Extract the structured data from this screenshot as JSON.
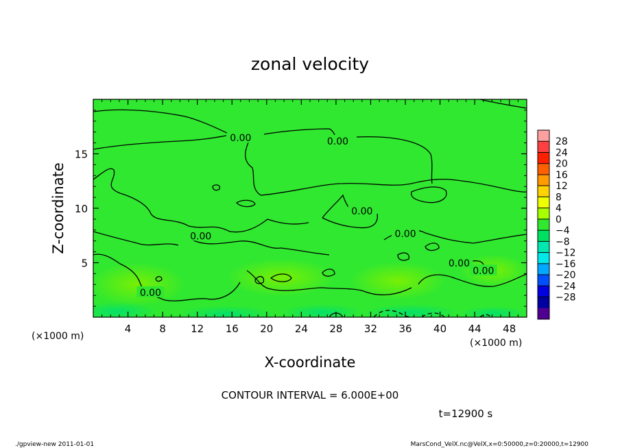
{
  "chart_data": {
    "type": "contour",
    "title": "zonal velocity",
    "xlabel": "X-coordinate",
    "ylabel": "Z-coordinate",
    "x_unit_left": "(×1000 m)",
    "x_unit_right": "(×1000 m)",
    "xlim": [
      0,
      50
    ],
    "ylim": [
      0,
      20
    ],
    "x_ticks": [
      4,
      8,
      12,
      16,
      20,
      24,
      28,
      32,
      36,
      40,
      44,
      48
    ],
    "y_ticks": [
      5,
      10,
      15
    ],
    "contour_interval_text": "CONTOUR INTERVAL = 6.000E+00",
    "contour_labels": [
      {
        "x": 17.0,
        "z": 16.4,
        "text": "0.00"
      },
      {
        "x": 28.2,
        "z": 16.1,
        "text": "0.00"
      },
      {
        "x": 31.0,
        "z": 9.7,
        "text": "0.00"
      },
      {
        "x": 12.4,
        "z": 7.4,
        "text": "0.00"
      },
      {
        "x": 36.0,
        "z": 7.6,
        "text": "0.00"
      },
      {
        "x": 42.2,
        "z": 4.9,
        "text": "0.00"
      },
      {
        "x": 45.0,
        "z": 4.2,
        "text": "0.00"
      },
      {
        "x": 6.6,
        "z": 2.2,
        "text": "0.00"
      }
    ],
    "colorbar": {
      "levels": [
        "28",
        "24",
        "20",
        "16",
        "12",
        "8",
        "4",
        "0",
        "−4",
        "−8",
        "−12",
        "−16",
        "−20",
        "−24",
        "−28"
      ],
      "colors": [
        "#ffa0a0",
        "#ff4040",
        "#ff2000",
        "#ff6000",
        "#ff9a00",
        "#ffd200",
        "#f0ff00",
        "#a8ff00",
        "#30e830",
        "#00e060",
        "#00e8b0",
        "#00e8e8",
        "#00a8ff",
        "#0050ff",
        "#0000e0",
        "#0000a0",
        "#500090"
      ]
    }
  },
  "footer": {
    "time_label": "t=12900 s",
    "left_note": "./gpview-new  2011-01-01",
    "right_note": "MarsCond_VelX.nc@VelX,x=0:50000,z=0:20000,t=12900"
  }
}
